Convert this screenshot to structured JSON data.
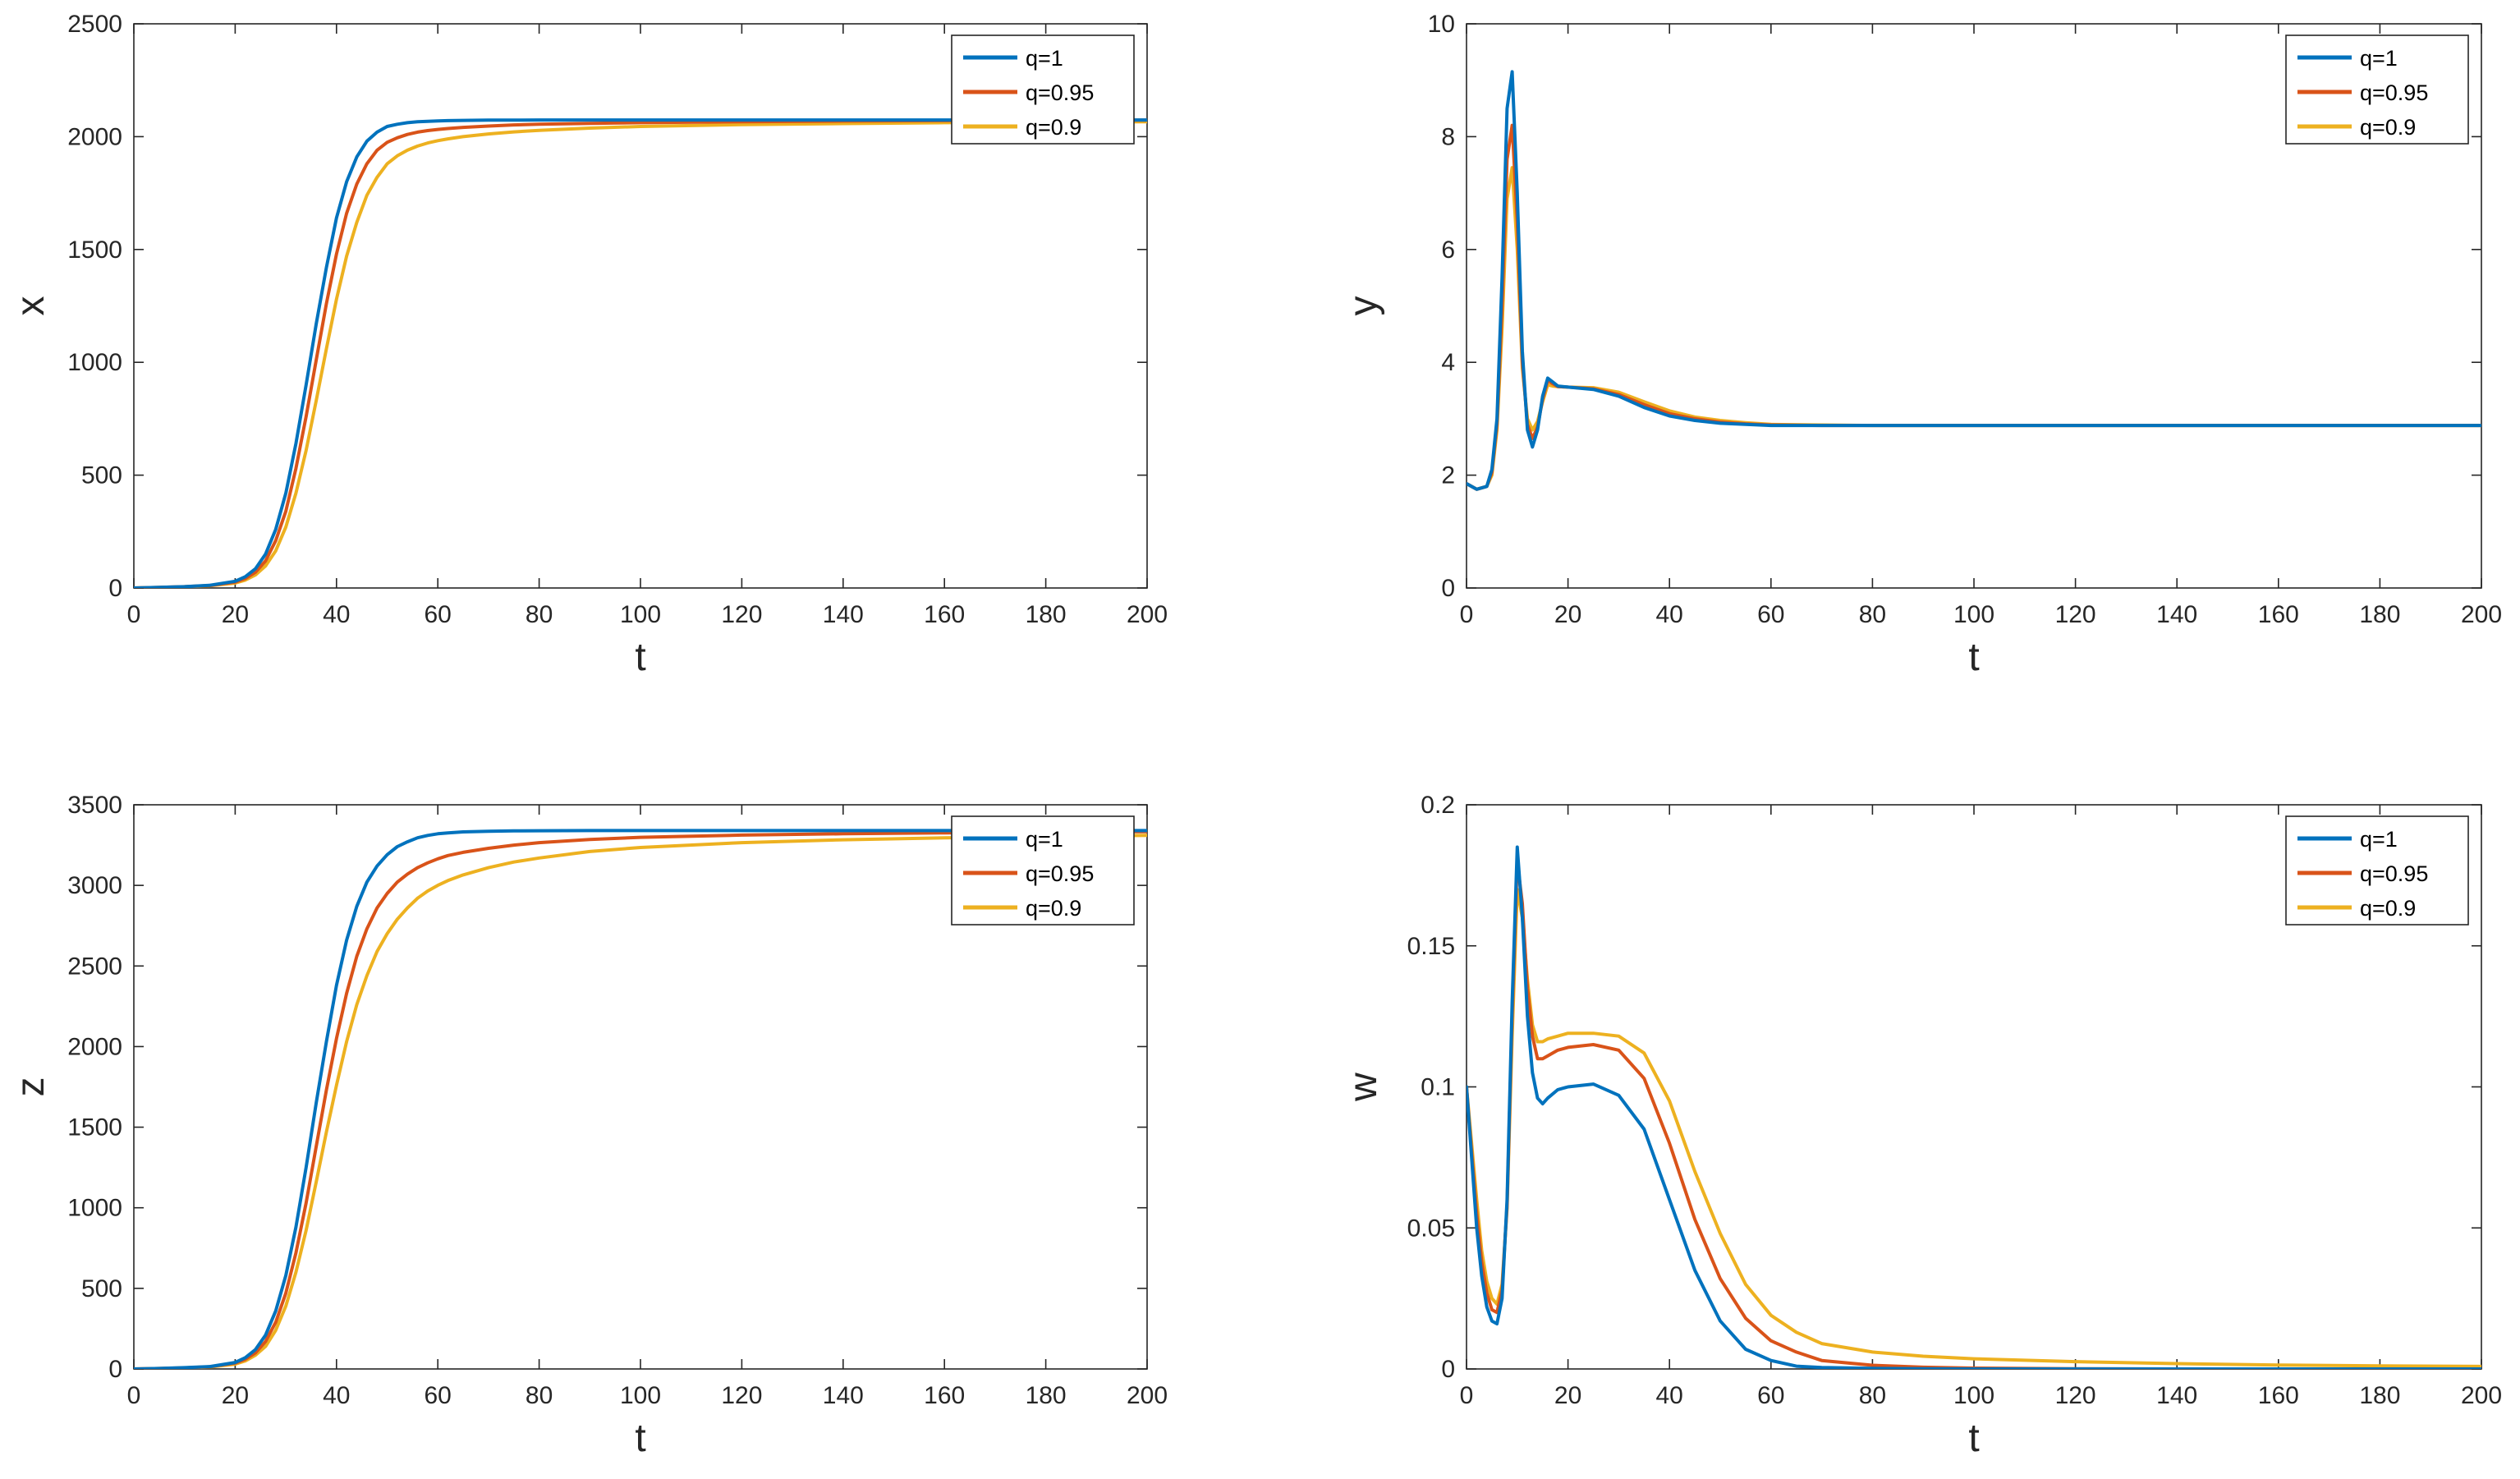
{
  "chart_data": [
    {
      "type": "line",
      "id": "x",
      "title": "",
      "xlabel": "t",
      "ylabel": "x",
      "xlim": [
        0,
        200
      ],
      "ylim": [
        0,
        2500
      ],
      "xticks": [
        "0",
        "20",
        "40",
        "60",
        "80",
        "100",
        "120",
        "140",
        "160",
        "180",
        "200"
      ],
      "yticks": [
        "0",
        "500",
        "1000",
        "1500",
        "2000",
        "2500"
      ],
      "legend": [
        "q=1",
        "q=0.95",
        "q=0.9"
      ],
      "legend_position": "top-right",
      "x": [
        0,
        5,
        10,
        15,
        20,
        22,
        24,
        26,
        28,
        30,
        32,
        34,
        36,
        38,
        40,
        42,
        44,
        46,
        48,
        50,
        52,
        54,
        56,
        58,
        60,
        62,
        65,
        70,
        75,
        80,
        90,
        100,
        120,
        140,
        160,
        180,
        200
      ],
      "series": [
        {
          "name": "q=1",
          "values": [
            0,
            3,
            6,
            12,
            30,
            50,
            85,
            150,
            260,
            420,
            640,
            900,
            1170,
            1420,
            1640,
            1800,
            1910,
            1980,
            2020,
            2045,
            2055,
            2062,
            2066,
            2068,
            2070,
            2071,
            2072,
            2073,
            2073,
            2074,
            2074,
            2074,
            2074,
            2074,
            2074,
            2074,
            2074
          ]
        },
        {
          "name": "q=0.95",
          "values": [
            0,
            3,
            6,
            11,
            26,
            42,
            70,
            120,
            210,
            340,
            530,
            760,
            1010,
            1260,
            1480,
            1660,
            1790,
            1880,
            1940,
            1975,
            1995,
            2010,
            2020,
            2027,
            2032,
            2036,
            2041,
            2047,
            2052,
            2055,
            2059,
            2062,
            2066,
            2069,
            2071,
            2072,
            2073
          ]
        },
        {
          "name": "q=0.9",
          "values": [
            0,
            2,
            5,
            10,
            22,
            35,
            58,
            98,
            165,
            270,
            420,
            610,
            830,
            1060,
            1280,
            1470,
            1620,
            1740,
            1820,
            1880,
            1915,
            1940,
            1958,
            1972,
            1982,
            1990,
            2000,
            2012,
            2021,
            2028,
            2038,
            2045,
            2053,
            2058,
            2062,
            2064,
            2066
          ]
        }
      ]
    },
    {
      "type": "line",
      "id": "y",
      "title": "",
      "xlabel": "t",
      "ylabel": "y",
      "xlim": [
        0,
        200
      ],
      "ylim": [
        0,
        10
      ],
      "xticks": [
        "0",
        "20",
        "40",
        "60",
        "80",
        "100",
        "120",
        "140",
        "160",
        "180",
        "200"
      ],
      "yticks": [
        "0",
        "2",
        "4",
        "6",
        "8",
        "10"
      ],
      "legend": [
        "q=1",
        "q=0.95",
        "q=0.9"
      ],
      "legend_position": "top-right",
      "x": [
        0,
        2,
        4,
        5,
        6,
        7,
        8,
        9,
        10,
        11,
        12,
        13,
        14,
        15,
        16,
        17,
        18,
        20,
        25,
        30,
        35,
        40,
        45,
        50,
        55,
        60,
        70,
        80,
        100,
        150,
        200
      ],
      "series": [
        {
          "name": "q=1",
          "values": [
            1.85,
            1.75,
            1.8,
            2.1,
            3.0,
            5.5,
            8.5,
            9.15,
            7.0,
            4.2,
            2.8,
            2.5,
            2.8,
            3.4,
            3.72,
            3.65,
            3.58,
            3.56,
            3.52,
            3.4,
            3.2,
            3.05,
            2.97,
            2.92,
            2.9,
            2.88,
            2.88,
            2.88,
            2.88,
            2.88,
            2.88
          ]
        },
        {
          "name": "q=0.95",
          "values": [
            1.85,
            1.75,
            1.8,
            2.05,
            2.9,
            5.0,
            7.6,
            8.2,
            6.5,
            4.0,
            2.9,
            2.65,
            2.85,
            3.35,
            3.68,
            3.62,
            3.57,
            3.56,
            3.53,
            3.43,
            3.25,
            3.09,
            3.0,
            2.94,
            2.91,
            2.89,
            2.88,
            2.88,
            2.88,
            2.88,
            2.88
          ]
        },
        {
          "name": "q=0.9",
          "values": [
            1.85,
            1.75,
            1.8,
            2.0,
            2.8,
            4.6,
            6.9,
            7.45,
            6.0,
            3.9,
            3.0,
            2.8,
            2.95,
            3.3,
            3.6,
            3.58,
            3.57,
            3.56,
            3.55,
            3.47,
            3.3,
            3.14,
            3.03,
            2.97,
            2.93,
            2.9,
            2.89,
            2.88,
            2.88,
            2.88,
            2.88
          ]
        }
      ]
    },
    {
      "type": "line",
      "id": "z",
      "title": "",
      "xlabel": "t",
      "ylabel": "z",
      "xlim": [
        0,
        200
      ],
      "ylim": [
        0,
        3500
      ],
      "xticks": [
        "0",
        "20",
        "40",
        "60",
        "80",
        "100",
        "120",
        "140",
        "160",
        "180",
        "200"
      ],
      "yticks": [
        "0",
        "500",
        "1000",
        "1500",
        "2000",
        "2500",
        "3000",
        "3500"
      ],
      "legend": [
        "q=1",
        "q=0.95",
        "q=0.9"
      ],
      "legend_position": "top-right",
      "x": [
        0,
        5,
        10,
        15,
        20,
        22,
        24,
        26,
        28,
        30,
        32,
        34,
        36,
        38,
        40,
        42,
        44,
        46,
        48,
        50,
        52,
        54,
        56,
        58,
        60,
        62,
        65,
        70,
        75,
        80,
        90,
        100,
        120,
        140,
        160,
        180,
        200
      ],
      "series": [
        {
          "name": "q=1",
          "values": [
            0,
            3,
            8,
            15,
            40,
            70,
            120,
            210,
            360,
            580,
            880,
            1250,
            1650,
            2030,
            2380,
            2660,
            2870,
            3020,
            3120,
            3190,
            3240,
            3270,
            3295,
            3310,
            3320,
            3326,
            3332,
            3336,
            3338,
            3339,
            3340,
            3340,
            3340,
            3340,
            3340,
            3340,
            3340
          ]
        },
        {
          "name": "q=0.95",
          "values": [
            0,
            3,
            7,
            14,
            36,
            60,
            100,
            170,
            290,
            470,
            720,
            1030,
            1380,
            1730,
            2050,
            2330,
            2560,
            2730,
            2860,
            2950,
            3020,
            3070,
            3110,
            3140,
            3165,
            3185,
            3205,
            3230,
            3250,
            3265,
            3285,
            3298,
            3312,
            3320,
            3326,
            3330,
            3333
          ]
        },
        {
          "name": "q=0.9",
          "values": [
            0,
            2,
            6,
            12,
            30,
            50,
            85,
            140,
            240,
            390,
            600,
            860,
            1160,
            1470,
            1760,
            2030,
            2260,
            2440,
            2590,
            2700,
            2790,
            2860,
            2920,
            2965,
            3000,
            3030,
            3065,
            3110,
            3145,
            3170,
            3210,
            3235,
            3265,
            3283,
            3295,
            3303,
            3310
          ]
        }
      ]
    },
    {
      "type": "line",
      "id": "w",
      "title": "",
      "xlabel": "t",
      "ylabel": "w",
      "xlim": [
        0,
        200
      ],
      "ylim": [
        0,
        0.2
      ],
      "xticks": [
        "0",
        "20",
        "40",
        "60",
        "80",
        "100",
        "120",
        "140",
        "160",
        "180",
        "200"
      ],
      "yticks": [
        "0",
        "0.05",
        "0.1",
        "0.15",
        "0.2"
      ],
      "legend": [
        "q=1",
        "q=0.95",
        "q=0.9"
      ],
      "legend_position": "top-right",
      "x": [
        0,
        1,
        2,
        3,
        4,
        5,
        6,
        7,
        8,
        9,
        10,
        11,
        12,
        13,
        14,
        15,
        16,
        18,
        20,
        25,
        30,
        35,
        40,
        45,
        50,
        55,
        60,
        65,
        70,
        80,
        90,
        100,
        120,
        140,
        160,
        180,
        200
      ],
      "series": [
        {
          "name": "q=1",
          "values": [
            0.1,
            0.075,
            0.05,
            0.033,
            0.022,
            0.017,
            0.016,
            0.025,
            0.06,
            0.13,
            0.185,
            0.16,
            0.125,
            0.105,
            0.096,
            0.094,
            0.096,
            0.099,
            0.1,
            0.101,
            0.097,
            0.085,
            0.06,
            0.035,
            0.017,
            0.007,
            0.003,
            0.001,
            0.0005,
            0.0002,
            0.0001,
            0,
            0,
            0,
            0,
            0,
            0
          ]
        },
        {
          "name": "q=0.95",
          "values": [
            0.1,
            0.077,
            0.055,
            0.038,
            0.027,
            0.021,
            0.02,
            0.028,
            0.058,
            0.125,
            0.18,
            0.165,
            0.135,
            0.118,
            0.11,
            0.11,
            0.111,
            0.113,
            0.114,
            0.115,
            0.113,
            0.103,
            0.08,
            0.053,
            0.032,
            0.018,
            0.01,
            0.006,
            0.003,
            0.0013,
            0.0006,
            0.0003,
            0.0001,
            0,
            0,
            0,
            0
          ]
        },
        {
          "name": "q=0.9",
          "values": [
            0.1,
            0.08,
            0.06,
            0.042,
            0.031,
            0.025,
            0.023,
            0.03,
            0.057,
            0.118,
            0.17,
            0.16,
            0.138,
            0.122,
            0.116,
            0.116,
            0.117,
            0.118,
            0.119,
            0.119,
            0.118,
            0.112,
            0.095,
            0.07,
            0.048,
            0.03,
            0.019,
            0.013,
            0.009,
            0.006,
            0.0045,
            0.0036,
            0.0026,
            0.0019,
            0.0014,
            0.0011,
            0.0009
          ]
        }
      ]
    }
  ],
  "colors": {
    "series": [
      "#0072bd",
      "#d95319",
      "#edb120"
    ],
    "axis": "#262626",
    "background": "#ffffff"
  }
}
